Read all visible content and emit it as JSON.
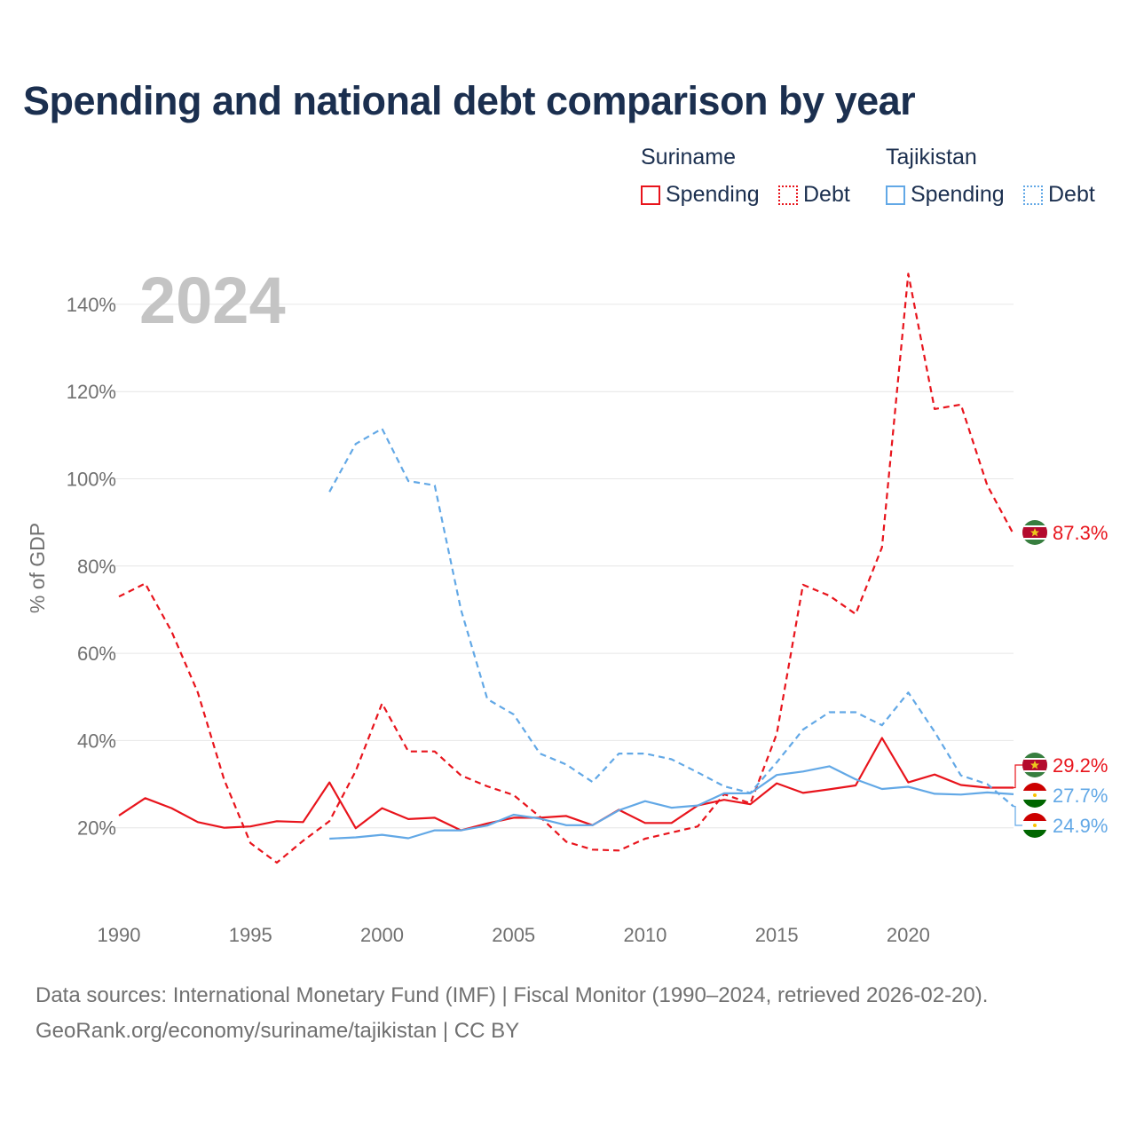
{
  "title": "Spending and national debt comparison by year",
  "legend": {
    "country1": "Suriname",
    "country2": "Tajikistan",
    "spending_label": "Spending",
    "debt_label": "Debt"
  },
  "year_watermark": "2024",
  "colors": {
    "suriname": "#e8141c",
    "tajikistan": "#62a8e6",
    "grid": "#e6e6e6",
    "axis_text": "#707070"
  },
  "footer": {
    "line1": "Data sources: International Monetary Fund (IMF) | Fiscal Monitor (1990–2024, retrieved 2026-02-20).",
    "line2": "GeoRank.org/economy/suriname/tajikistan | CC BY"
  },
  "chart_data": {
    "type": "line",
    "ylabel": "% of GDP",
    "xlim": [
      1990,
      2024
    ],
    "ylim": [
      0,
      150
    ],
    "x_ticks": [
      1990,
      1995,
      2000,
      2005,
      2010,
      2015,
      2020
    ],
    "y_ticks": [
      20,
      40,
      60,
      80,
      100,
      120,
      140
    ],
    "y_tick_labels": [
      "20%",
      "40%",
      "60%",
      "80%",
      "100%",
      "120%",
      "140%"
    ],
    "series": [
      {
        "name": "Suriname Spending",
        "country": "suriname",
        "style": "solid",
        "end_label": "29.2%",
        "x": [
          1990,
          1991,
          1992,
          1993,
          1994,
          1995,
          1996,
          1997,
          1998,
          1999,
          2000,
          2001,
          2002,
          2003,
          2004,
          2005,
          2006,
          2007,
          2008,
          2009,
          2010,
          2011,
          2012,
          2013,
          2014,
          2015,
          2016,
          2017,
          2018,
          2019,
          2020,
          2021,
          2022,
          2023,
          2024
        ],
        "values": [
          22.8,
          26.8,
          24.5,
          21.3,
          20.0,
          20.3,
          21.5,
          21.3,
          30.4,
          19.9,
          24.5,
          22.0,
          22.3,
          19.4,
          21.0,
          22.3,
          22.3,
          22.7,
          20.6,
          24.1,
          21.1,
          21.1,
          25.1,
          26.4,
          25.4,
          30.2,
          28.0,
          28.8,
          29.7,
          40.6,
          30.4,
          32.2,
          29.8,
          29.2,
          29.2
        ]
      },
      {
        "name": "Suriname Debt",
        "country": "suriname",
        "style": "dashed",
        "end_label": "87.3%",
        "x": [
          1990,
          1991,
          1992,
          1993,
          1994,
          1995,
          1996,
          1997,
          1998,
          1999,
          2000,
          2001,
          2002,
          2003,
          2004,
          2005,
          2006,
          2007,
          2008,
          2009,
          2010,
          2011,
          2012,
          2013,
          2014,
          2015,
          2016,
          2017,
          2018,
          2019,
          2020,
          2021,
          2022,
          2023,
          2024
        ],
        "values": [
          73.0,
          76.0,
          65.0,
          51.0,
          31.0,
          16.5,
          12.0,
          17.0,
          21.5,
          33.0,
          48.5,
          37.5,
          37.5,
          32.0,
          29.5,
          27.5,
          22.5,
          16.8,
          15.0,
          14.8,
          17.5,
          18.9,
          20.3,
          27.7,
          25.6,
          41.5,
          75.7,
          73.2,
          69.0,
          84.3,
          147.0,
          116.0,
          117.0,
          98.5,
          87.3
        ]
      },
      {
        "name": "Tajikistan Spending",
        "country": "tajikistan",
        "style": "solid",
        "end_label": "27.7%",
        "x": [
          1998,
          1999,
          2000,
          2001,
          2002,
          2003,
          2004,
          2005,
          2006,
          2007,
          2008,
          2009,
          2010,
          2011,
          2012,
          2013,
          2014,
          2015,
          2016,
          2017,
          2018,
          2019,
          2020,
          2021,
          2022,
          2023,
          2024
        ],
        "values": [
          17.5,
          17.8,
          18.4,
          17.6,
          19.4,
          19.4,
          20.5,
          23.0,
          22.1,
          20.6,
          20.6,
          24.0,
          26.1,
          24.6,
          25.1,
          27.9,
          27.9,
          32.1,
          32.9,
          34.1,
          31.1,
          28.9,
          29.4,
          27.8,
          27.6,
          28.1,
          27.7
        ]
      },
      {
        "name": "Tajikistan Debt",
        "country": "tajikistan",
        "style": "dashed",
        "end_label": "24.9%",
        "x": [
          1998,
          1999,
          2000,
          2001,
          2002,
          2003,
          2004,
          2005,
          2006,
          2007,
          2008,
          2009,
          2010,
          2011,
          2012,
          2013,
          2014,
          2015,
          2016,
          2017,
          2018,
          2019,
          2020,
          2021,
          2022,
          2023,
          2024
        ],
        "values": [
          97.0,
          108.0,
          111.5,
          99.5,
          98.5,
          70.0,
          49.5,
          46.0,
          37.0,
          34.5,
          30.5,
          37.0,
          37.0,
          35.7,
          32.7,
          29.5,
          28.0,
          35.0,
          42.5,
          46.5,
          46.5,
          43.5,
          51.0,
          42.0,
          32.0,
          30.0,
          24.9
        ]
      }
    ]
  }
}
